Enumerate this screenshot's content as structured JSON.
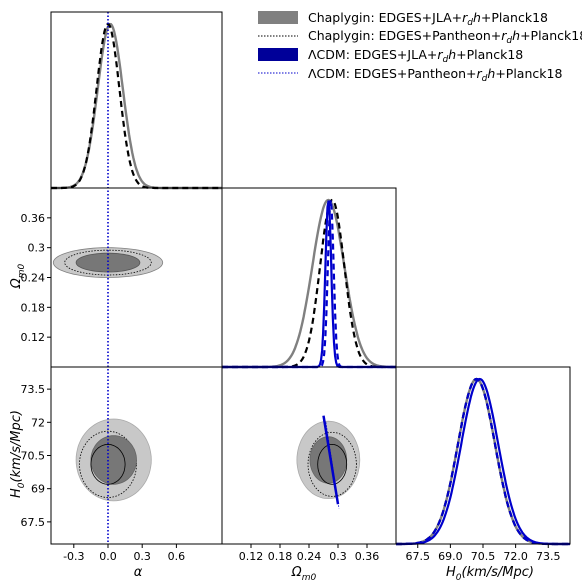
{
  "chart_data": {
    "type": "corner",
    "parameters": [
      {
        "key": "alpha",
        "label": "α",
        "range": [
          -0.5,
          1.0
        ],
        "ticks": [
          "-0.3",
          "0.0",
          "0.3",
          "0.6"
        ],
        "tick_values": [
          -0.3,
          0.0,
          0.3,
          0.6
        ]
      },
      {
        "key": "omega_m0",
        "label": "Ω",
        "label_sub": "m0",
        "range": [
          0.06,
          0.42
        ],
        "ticks": [
          "0.12",
          "0.18",
          "0.24",
          "0.3",
          "0.36"
        ],
        "tick_values": [
          0.12,
          0.18,
          0.24,
          0.3,
          0.36
        ],
        "yticks": [
          "0.12",
          "0.18",
          "0.24",
          "0.3",
          "0.36"
        ]
      },
      {
        "key": "H0",
        "label": "H",
        "label_sub": "0",
        "label_rest": "(km/s/Mpc)",
        "range": [
          66.5,
          74.5
        ],
        "ticks": [
          "67.5",
          "69.0",
          "70.5",
          "72.0",
          "73.5"
        ],
        "tick_values": [
          67.5,
          69.0,
          70.5,
          72.0,
          73.5
        ],
        "yticks": [
          "67.5",
          "69",
          "70.5",
          "72",
          "73.5"
        ]
      }
    ],
    "reference_line": {
      "parameter": "alpha",
      "value": 0.0,
      "color": "#0000cc",
      "style": "dotted"
    },
    "series": [
      {
        "name_pre": "Chaplygin: EDGES+JLA+",
        "name_post": "+Planck18",
        "color": "#808080",
        "style": "solid-fill"
      },
      {
        "name_pre": "Chaplygin: EDGES+Pantheon+",
        "name_post": "+Planck18",
        "color": "#000000",
        "style": "dashed"
      },
      {
        "name_pre": "ΛCDM: EDGES+JLA+",
        "name_post": "+Planck18",
        "color": "#0000cc",
        "style": "solid-fill"
      },
      {
        "name_pre": "ΛCDM: EDGES+Pantheon+",
        "name_post": "+Planck18",
        "color": "#0000cc",
        "style": "dashed"
      }
    ],
    "legend_rd": "r",
    "legend_rd_sub": "d",
    "legend_h": "h",
    "legend_position": "top-right",
    "marginals": {
      "alpha": [
        {
          "series": 0,
          "mean": 0.02,
          "sigma": 0.11
        },
        {
          "series": 1,
          "mean": 0.0,
          "sigma": 0.1
        }
      ],
      "omega_m0": [
        {
          "series": 0,
          "mean": 0.28,
          "sigma": 0.033
        },
        {
          "series": 1,
          "mean": 0.288,
          "sigma": 0.025
        },
        {
          "series": 2,
          "mean": 0.28,
          "sigma": 0.006
        },
        {
          "series": 3,
          "mean": 0.285,
          "sigma": 0.006
        }
      ],
      "H0": [
        {
          "series": 0,
          "mean": 70.2,
          "sigma": 0.85
        },
        {
          "series": 1,
          "mean": 70.2,
          "sigma": 0.85
        },
        {
          "series": 2,
          "mean": 70.35,
          "sigma": 0.85
        },
        {
          "series": 3,
          "mean": 70.2,
          "sigma": 0.85
        }
      ]
    },
    "contours": {
      "alpha_omega": [
        {
          "series": 0,
          "center": [
            0.0,
            0.27
          ],
          "outer": [
            0.48,
            0.03
          ],
          "inner": [
            0.28,
            0.019
          ],
          "angle": -0.42,
          "color": "#808080"
        },
        {
          "series": 1,
          "center": [
            0.0,
            0.27
          ],
          "outer": [
            0.38,
            0.025
          ],
          "angle": -0.42,
          "color": "#000000"
        }
      ],
      "alpha_H0": [
        {
          "series": 0,
          "center": [
            0.05,
            70.3
          ],
          "outer": [
            0.33,
            1.85
          ],
          "inner": [
            0.2,
            1.1
          ],
          "color": "#808080"
        },
        {
          "series": 1,
          "center": [
            0.0,
            70.1
          ],
          "outer": [
            0.25,
            1.5
          ],
          "inner": [
            0.15,
            0.9
          ],
          "color": "#000000"
        }
      ],
      "omega_H0": [
        {
          "series": 0,
          "center": [
            0.28,
            70.3
          ],
          "outer": [
            0.065,
            1.75
          ],
          "inner": [
            0.038,
            1.05
          ],
          "color": "#808080"
        },
        {
          "series": 1,
          "center": [
            0.288,
            70.1
          ],
          "outer": [
            0.05,
            1.45
          ],
          "inner": [
            0.03,
            0.9
          ],
          "color": "#000000"
        },
        {
          "series": 2,
          "center": [
            0.284,
            70.4
          ],
          "span": [
            [
              0.27,
              72.3
            ],
            [
              0.3,
              68.3
            ]
          ],
          "color": "#0000cc"
        },
        {
          "series": 3,
          "center": [
            0.288,
            70.2
          ],
          "span": [
            [
              0.275,
              72.0
            ],
            [
              0.302,
              68.1
            ]
          ],
          "color": "#0000cc"
        }
      ]
    }
  }
}
